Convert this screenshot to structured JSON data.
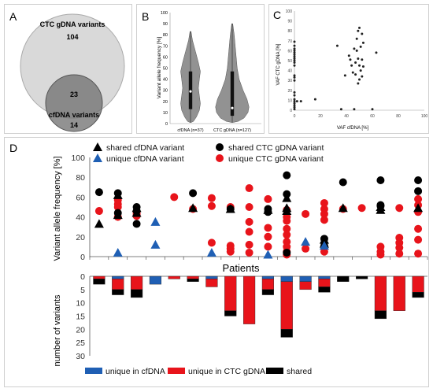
{
  "panels": {
    "A": {
      "letter": "A",
      "big_label": "CTC gDNA variants",
      "big_only": "104",
      "overlap": "23",
      "small_label": "cfDNA variants",
      "small_only": "14"
    },
    "B": {
      "letter": "B",
      "ylabel": "Variant allele frequency [%]",
      "yticks": [
        "0",
        "10",
        "20",
        "30",
        "40",
        "50",
        "60",
        "70",
        "80",
        "90",
        "100"
      ],
      "cat1": "cfDNA (n=37)",
      "cat2": "CTC gDNA (n=127)"
    },
    "C": {
      "letter": "C",
      "xlabel": "VAF cfDNA [%]",
      "ylabel": "VAF CTC gDNA [%]",
      "xticks": [
        "0",
        "20",
        "40",
        "60",
        "80",
        "100"
      ],
      "yticks": [
        "0",
        "10",
        "20",
        "30",
        "40",
        "50",
        "60",
        "70",
        "80",
        "90",
        "100"
      ]
    },
    "D": {
      "letter": "D",
      "top_ylabel": "Variant allele frequency [%]",
      "top_yticks": [
        "0",
        "20",
        "40",
        "60",
        "80",
        "100"
      ],
      "xlabel": "Patients",
      "bottom_ylabel": "number of variants",
      "bottom_yticks": [
        "0",
        "5",
        "10",
        "15",
        "20",
        "25",
        "30"
      ],
      "legend_top": [
        {
          "label": "shared cfDNA variant",
          "color": "#000000",
          "shape": "triangle"
        },
        {
          "label": "shared CTC gDNA variant",
          "color": "#000000",
          "shape": "circle"
        },
        {
          "label": "unique cfDNA variant",
          "color": "#1f5fb4",
          "shape": "triangle"
        },
        {
          "label": "unique CTC gDNA variant",
          "color": "#e8141b",
          "shape": "circle"
        }
      ],
      "legend_bottom": [
        {
          "label": "unique in cfDNA",
          "color": "#1f5fb4"
        },
        {
          "label": "unique in CTC gDNA",
          "color": "#e8141b"
        },
        {
          "label": "shared",
          "color": "#000000"
        }
      ]
    }
  },
  "chart_data": [
    {
      "type": "other",
      "title": "",
      "sets": [
        {
          "name": "CTC gDNA variants",
          "unique": 104
        },
        {
          "name": "cfDNA variants",
          "unique": 14
        }
      ],
      "intersection": 23
    },
    {
      "type": "other",
      "ylabel": "Variant allele frequency [%]",
      "ylim": [
        0,
        100
      ],
      "categories": [
        "cfDNA (n=37)",
        "CTC gDNA (n=127)"
      ],
      "violins": [
        {
          "min": 1,
          "q1": 13,
          "median": 29,
          "q3": 47,
          "max": 83
        },
        {
          "min": 1,
          "q1": 7,
          "median": 14,
          "q3": 47,
          "max": 90
        }
      ]
    },
    {
      "type": "scatter",
      "xlabel": "VAF cfDNA [%]",
      "ylabel": "VAF CTC gDNA [%]",
      "xlim": [
        0,
        100
      ],
      "ylim": [
        0,
        100
      ],
      "points": [
        [
          0,
          69
        ],
        [
          0,
          65
        ],
        [
          0,
          62
        ],
        [
          0,
          60
        ],
        [
          0,
          58
        ],
        [
          0,
          56
        ],
        [
          0,
          54
        ],
        [
          0,
          52
        ],
        [
          0,
          50
        ],
        [
          0,
          48
        ],
        [
          0,
          45
        ],
        [
          0,
          35
        ],
        [
          0,
          33
        ],
        [
          0,
          30
        ],
        [
          0,
          18
        ],
        [
          0,
          15
        ],
        [
          0,
          11
        ],
        [
          0,
          9
        ],
        [
          0,
          7
        ],
        [
          0,
          5
        ],
        [
          0,
          3
        ],
        [
          0,
          1
        ],
        [
          2,
          9
        ],
        [
          5,
          9
        ],
        [
          16,
          11
        ],
        [
          33,
          65
        ],
        [
          36,
          1
        ],
        [
          39,
          35
        ],
        [
          42,
          55
        ],
        [
          43,
          51
        ],
        [
          44,
          45
        ],
        [
          45,
          38
        ],
        [
          46,
          62
        ],
        [
          46,
          1
        ],
        [
          47,
          48
        ],
        [
          47,
          36
        ],
        [
          48,
          72
        ],
        [
          48,
          60
        ],
        [
          49,
          80
        ],
        [
          49,
          52
        ],
        [
          49,
          27
        ],
        [
          50,
          83
        ],
        [
          50,
          45
        ],
        [
          50,
          31
        ],
        [
          51,
          64
        ],
        [
          51,
          40
        ],
        [
          52,
          77
        ],
        [
          52,
          51
        ],
        [
          52,
          34
        ],
        [
          53,
          68
        ],
        [
          53,
          44
        ],
        [
          60,
          1
        ],
        [
          63,
          58
        ]
      ]
    },
    {
      "type": "scatter",
      "title": "",
      "ylabel": "Variant allele frequency [%]",
      "xlabel": "Patients",
      "ylim": [
        0,
        100
      ],
      "x": [
        1,
        2,
        3,
        4,
        5,
        6,
        7,
        8,
        9,
        10,
        11,
        12,
        13,
        14,
        15,
        16,
        17,
        18,
        19,
        20
      ],
      "series": [
        {
          "name": "shared cfDNA variant",
          "points": [
            [
              1,
              33
            ],
            [
              2,
              62
            ],
            [
              2,
              42
            ],
            [
              3,
              49
            ],
            [
              3,
              44
            ],
            [
              6,
              49
            ],
            [
              8,
              48
            ],
            [
              10,
              47
            ],
            [
              11,
              49
            ],
            [
              11,
              59
            ],
            [
              11,
              46
            ],
            [
              13,
              13
            ],
            [
              13,
              17
            ],
            [
              14,
              49
            ],
            [
              16,
              50
            ],
            [
              16,
              47
            ],
            [
              18,
              49
            ]
          ]
        },
        {
          "name": "shared CTC gDNA variant",
          "points": [
            [
              1,
              65
            ],
            [
              2,
              64
            ],
            [
              2,
              44
            ],
            [
              3,
              50
            ],
            [
              3,
              46
            ],
            [
              3,
              33
            ],
            [
              6,
              64
            ],
            [
              8,
              48
            ],
            [
              10,
              48
            ],
            [
              10,
              45
            ],
            [
              11,
              82
            ],
            [
              11,
              63
            ],
            [
              11,
              4
            ],
            [
              13,
              18
            ],
            [
              13,
              11
            ],
            [
              14,
              75
            ],
            [
              16,
              77
            ],
            [
              16,
              52
            ],
            [
              16,
              51
            ],
            [
              18,
              77
            ],
            [
              18,
              66
            ]
          ]
        },
        {
          "name": "unique cfDNA variant",
          "points": [
            [
              2,
              4
            ],
            [
              4,
              35
            ],
            [
              4,
              12
            ],
            [
              7,
              4
            ],
            [
              10,
              2
            ],
            [
              12,
              15
            ],
            [
              13,
              11
            ]
          ]
        },
        {
          "name": "unique CTC gDNA variant",
          "points": [
            [
              1,
              46
            ],
            [
              2,
              57
            ],
            [
              2,
              53
            ],
            [
              2,
              50
            ],
            [
              2,
              40
            ],
            [
              3,
              45
            ],
            [
              3,
              43
            ],
            [
              3,
              41
            ],
            [
              5,
              60
            ],
            [
              6,
              48
            ],
            [
              7,
              59
            ],
            [
              7,
              51
            ],
            [
              7,
              14
            ],
            [
              8,
              50
            ],
            [
              8,
              11
            ],
            [
              8,
              8
            ],
            [
              8,
              5
            ],
            [
              9,
              69
            ],
            [
              9,
              50
            ],
            [
              9,
              35
            ],
            [
              9,
              25
            ],
            [
              9,
              12
            ],
            [
              9,
              4
            ],
            [
              10,
              58
            ],
            [
              10,
              29
            ],
            [
              10,
              20
            ],
            [
              10,
              10
            ],
            [
              11,
              47
            ],
            [
              11,
              40
            ],
            [
              11,
              36
            ],
            [
              11,
              28
            ],
            [
              11,
              22
            ],
            [
              11,
              15
            ],
            [
              11,
              10
            ],
            [
              11,
              5
            ],
            [
              11,
              2
            ],
            [
              12,
              43
            ],
            [
              12,
              8
            ],
            [
              13,
              54
            ],
            [
              13,
              48
            ],
            [
              13,
              43
            ],
            [
              13,
              37
            ],
            [
              13,
              5
            ],
            [
              14,
              48
            ],
            [
              15,
              49
            ],
            [
              16,
              10
            ],
            [
              16,
              5
            ],
            [
              16,
              2
            ],
            [
              17,
              49
            ],
            [
              17,
              19
            ],
            [
              17,
              14
            ],
            [
              17,
              9
            ],
            [
              17,
              3
            ],
            [
              18,
              58
            ],
            [
              18,
              52
            ],
            [
              18,
              45
            ],
            [
              18,
              28
            ],
            [
              18,
              17
            ],
            [
              18,
              3
            ]
          ]
        }
      ]
    },
    {
      "type": "bar",
      "ylabel": "number of variants",
      "xlabel": "Patients",
      "ylim": [
        0,
        30
      ],
      "categories": [
        "1",
        "2",
        "3",
        "4",
        "5",
        "6",
        "7",
        "8",
        "9",
        "10",
        "11",
        "12",
        "13",
        "14",
        "15",
        "16",
        "17",
        "18"
      ],
      "series": [
        {
          "name": "unique in cfDNA",
          "values": [
            0,
            1,
            0,
            3,
            0,
            0,
            1,
            0,
            0,
            1,
            2,
            2,
            1,
            0,
            0,
            0,
            0,
            0
          ]
        },
        {
          "name": "unique in CTC gDNA",
          "values": [
            1,
            4,
            5,
            0,
            1,
            1,
            3,
            13,
            18,
            4,
            18,
            3,
            3,
            0,
            0,
            13,
            13,
            6
          ]
        },
        {
          "name": "shared",
          "values": [
            2,
            2,
            3,
            0,
            0,
            1,
            0,
            2,
            0,
            2,
            3,
            0,
            2,
            2,
            1,
            3,
            0,
            2
          ]
        }
      ]
    }
  ]
}
